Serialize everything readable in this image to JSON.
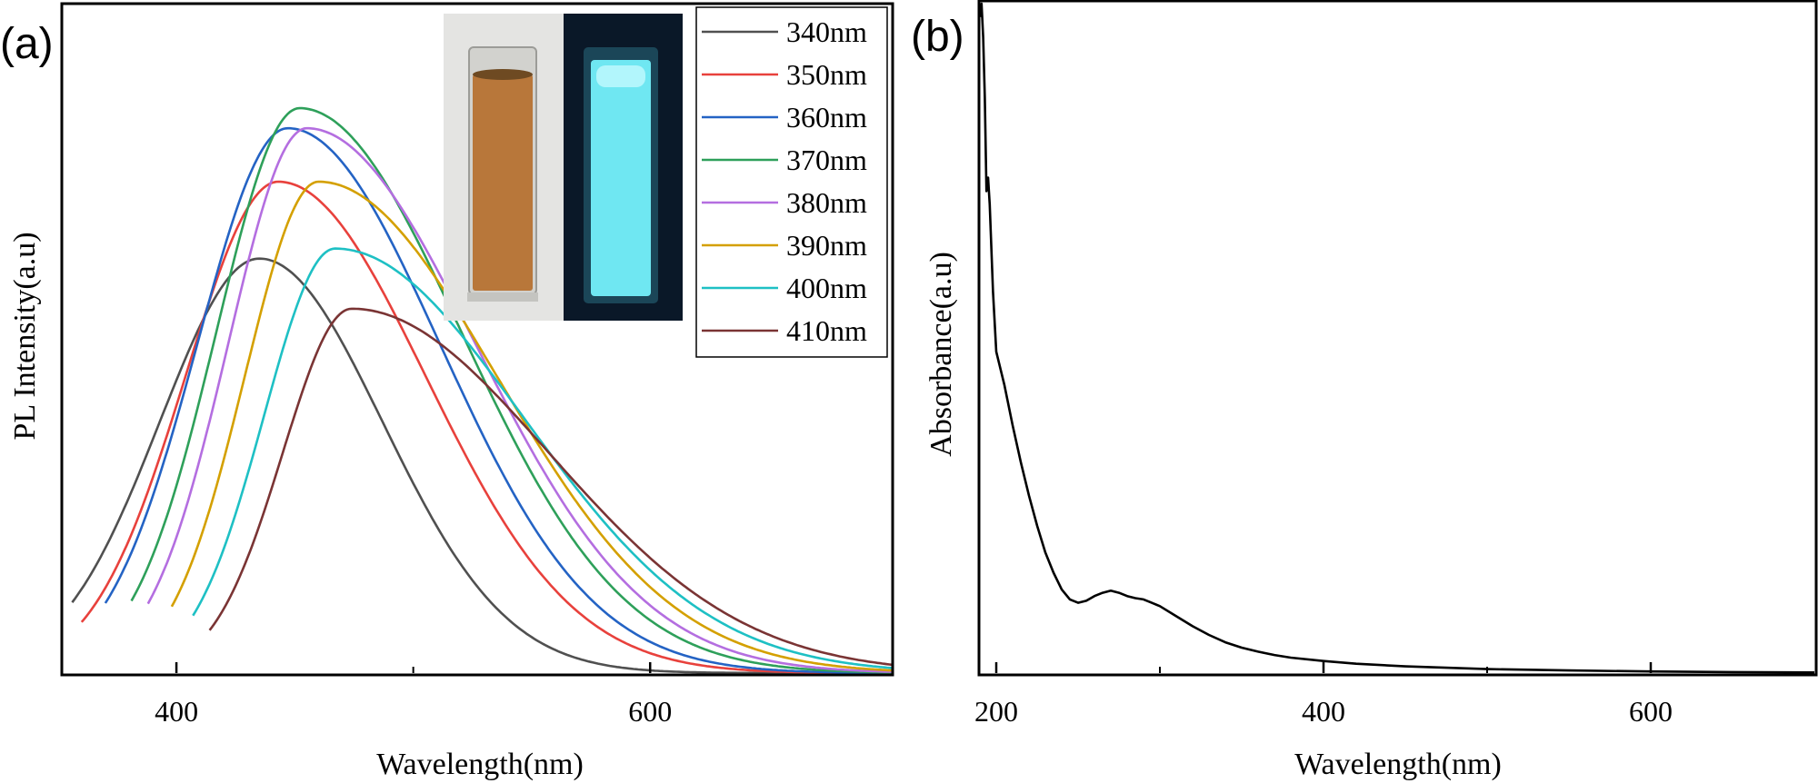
{
  "chart_data": [
    {
      "panel_label": "(a)",
      "type": "line",
      "title": "",
      "xlabel": "Wavelength(nm)",
      "ylabel": "PL Intensity(a.u)",
      "xlim": [
        352,
        702
      ],
      "ylim": [
        0,
        100
      ],
      "xticks": [
        400,
        600
      ],
      "yticks": [],
      "grid": false,
      "legend_position": "top-right",
      "series": [
        {
          "name": "340nm",
          "color": "#505050",
          "start": 356,
          "peak_x": 435,
          "peak_y": 62,
          "left_width": 42,
          "right_width": 52
        },
        {
          "name": "350nm",
          "color": "#e8413c",
          "start": 360,
          "peak_x": 443,
          "peak_y": 73.5,
          "left_width": 39,
          "right_width": 62
        },
        {
          "name": "360nm",
          "color": "#2463c4",
          "start": 370,
          "peak_x": 447,
          "peak_y": 81.5,
          "left_width": 38,
          "right_width": 64
        },
        {
          "name": "370nm",
          "color": "#2ea05a",
          "start": 381,
          "peak_x": 452,
          "peak_y": 84.5,
          "left_width": 35,
          "right_width": 68
        },
        {
          "name": "380nm",
          "color": "#b46ee0",
          "start": 388,
          "peak_x": 455,
          "peak_y": 81.5,
          "left_width": 33,
          "right_width": 71
        },
        {
          "name": "390nm",
          "color": "#d4a000",
          "start": 398,
          "peak_x": 460,
          "peak_y": 73.5,
          "left_width": 31,
          "right_width": 75
        },
        {
          "name": "400nm",
          "color": "#1ec0c4",
          "start": 407,
          "peak_x": 467,
          "peak_y": 63.5,
          "left_width": 30,
          "right_width": 79
        },
        {
          "name": "410nm",
          "color": "#7a3434",
          "start": 414,
          "peak_x": 474,
          "peak_y": 54.5,
          "left_width": 29,
          "right_width": 83
        }
      ],
      "inset": {
        "left_image": "cuvette-daylight",
        "right_image": "cuvette-uv-fluorescence",
        "left_color": "#b8773a",
        "right_color": "#6fe7f2"
      }
    },
    {
      "panel_label": "(b)",
      "type": "line",
      "title": "",
      "xlabel": "Wavelength(nm)",
      "ylabel": "Absorbance(a.u)",
      "xlim": [
        190,
        700
      ],
      "ylim": [
        0,
        100
      ],
      "xticks": [
        200,
        400,
        600
      ],
      "yticks": [],
      "grid": false,
      "series": [
        {
          "name": "Absorbance",
          "color": "#000000",
          "x": [
            190,
            191,
            192,
            193,
            194,
            195,
            196,
            198,
            200,
            205,
            210,
            215,
            220,
            225,
            230,
            235,
            240,
            245,
            250,
            255,
            260,
            265,
            270,
            275,
            280,
            285,
            290,
            295,
            300,
            310,
            320,
            330,
            340,
            350,
            360,
            370,
            380,
            400,
            420,
            450,
            500,
            550,
            600,
            650,
            700
          ],
          "y": [
            98,
            100,
            95,
            86,
            72,
            74,
            70,
            57,
            48,
            43,
            37,
            31.5,
            26.5,
            22,
            18,
            15,
            12.5,
            11,
            10.5,
            10.8,
            11.5,
            12,
            12.3,
            12,
            11.5,
            11.2,
            11,
            10.5,
            10,
            8.5,
            7,
            5.7,
            4.6,
            3.8,
            3.2,
            2.7,
            2.3,
            1.8,
            1.4,
            1,
            0.6,
            0.4,
            0.25,
            0.15,
            0.1
          ]
        }
      ]
    }
  ]
}
